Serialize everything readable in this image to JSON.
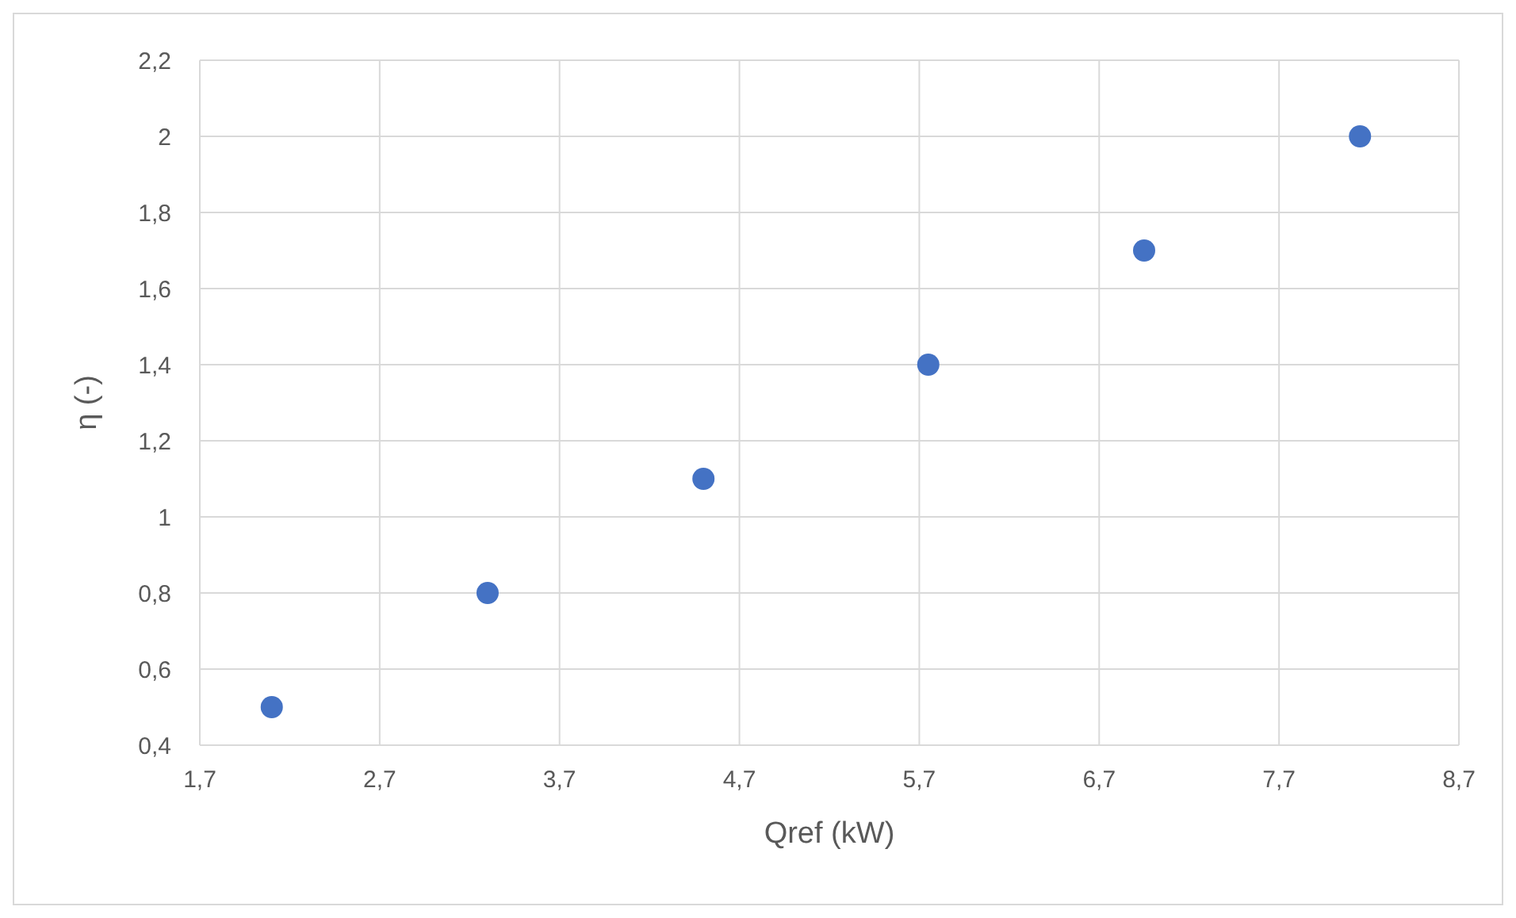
{
  "chart_data": {
    "type": "scatter",
    "xlabel": "Qref (kW)",
    "ylabel": "η (-)",
    "x": [
      2.1,
      3.3,
      4.5,
      5.75,
      6.95,
      8.15
    ],
    "series": [
      {
        "color": "#4472c4",
        "values": [
          0.5,
          0.8,
          1.1,
          1.4,
          1.7,
          2.0
        ]
      }
    ],
    "marker": "circle",
    "grid": true,
    "legend": false,
    "xlim": [
      1.7,
      8.7
    ],
    "xticks": [
      {
        "value": 1.7,
        "label": "1,7"
      },
      {
        "value": 2.7,
        "label": "2,7"
      },
      {
        "value": 3.7,
        "label": "3,7"
      },
      {
        "value": 4.7,
        "label": "4,7"
      },
      {
        "value": 5.7,
        "label": "5,7"
      },
      {
        "value": 6.7,
        "label": "6,7"
      },
      {
        "value": 7.7,
        "label": "7,7"
      },
      {
        "value": 8.7,
        "label": "8,7"
      }
    ],
    "ylim": [
      0.4,
      2.2
    ],
    "yticks": [
      {
        "value": 0.4,
        "label": "0,4"
      },
      {
        "value": 0.6,
        "label": "0,6"
      },
      {
        "value": 0.8,
        "label": "0,8"
      },
      1,
      {
        "value": 1.2,
        "label": "1,2"
      },
      {
        "value": 1.4,
        "label": "1,4"
      },
      {
        "value": 1.6,
        "label": "1,6"
      },
      {
        "value": 1.8,
        "label": "1,8"
      },
      2,
      {
        "value": 2.2,
        "label": "2,2"
      }
    ]
  }
}
